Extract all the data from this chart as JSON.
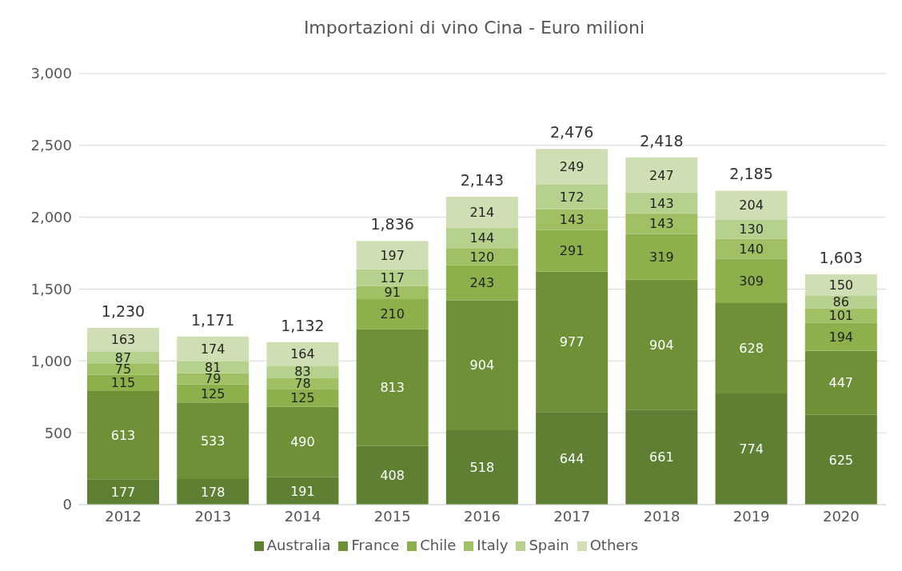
{
  "chart_data": {
    "type": "bar",
    "title": "Importazioni di vino Cina - Euro milioni",
    "stacked": true,
    "categories": [
      "2012",
      "2013",
      "2014",
      "2015",
      "2016",
      "2017",
      "2018",
      "2019",
      "2020"
    ],
    "series": [
      {
        "name": "Australia",
        "color": "#5f7f33",
        "values": [
          177,
          178,
          191,
          408,
          518,
          644,
          661,
          774,
          625
        ]
      },
      {
        "name": "France",
        "color": "#6f9037",
        "values": [
          613,
          533,
          490,
          813,
          904,
          977,
          904,
          628,
          447
        ]
      },
      {
        "name": "Chile",
        "color": "#8eb04c",
        "values": [
          115,
          125,
          125,
          210,
          243,
          291,
          319,
          309,
          194
        ]
      },
      {
        "name": "Italy",
        "color": "#a0c063",
        "values": [
          75,
          79,
          78,
          91,
          120,
          143,
          143,
          140,
          101
        ]
      },
      {
        "name": "Spain",
        "color": "#b6d08e",
        "values": [
          87,
          81,
          83,
          117,
          144,
          172,
          143,
          130,
          86
        ]
      },
      {
        "name": "Others",
        "color": "#cfdfb3",
        "values": [
          163,
          174,
          164,
          197,
          214,
          249,
          247,
          204,
          150
        ]
      }
    ],
    "totals": [
      "1,230",
      "1,171",
      "1,132",
      "1,836",
      "2,143",
      "2,476",
      "2,418",
      "2,185",
      "1,603"
    ],
    "data_labels": true,
    "ylim": [
      0,
      3000
    ],
    "yticks": [
      {
        "value": 0,
        "label": "0"
      },
      {
        "value": 500,
        "label": "500"
      },
      {
        "value": 1000,
        "label": "1,000"
      },
      {
        "value": 1500,
        "label": "1,500"
      },
      {
        "value": 2000,
        "label": "2,000"
      },
      {
        "value": 2500,
        "label": "2,500"
      },
      {
        "value": 3000,
        "label": "3,000"
      }
    ],
    "grid": "y",
    "legend": "bottom"
  }
}
